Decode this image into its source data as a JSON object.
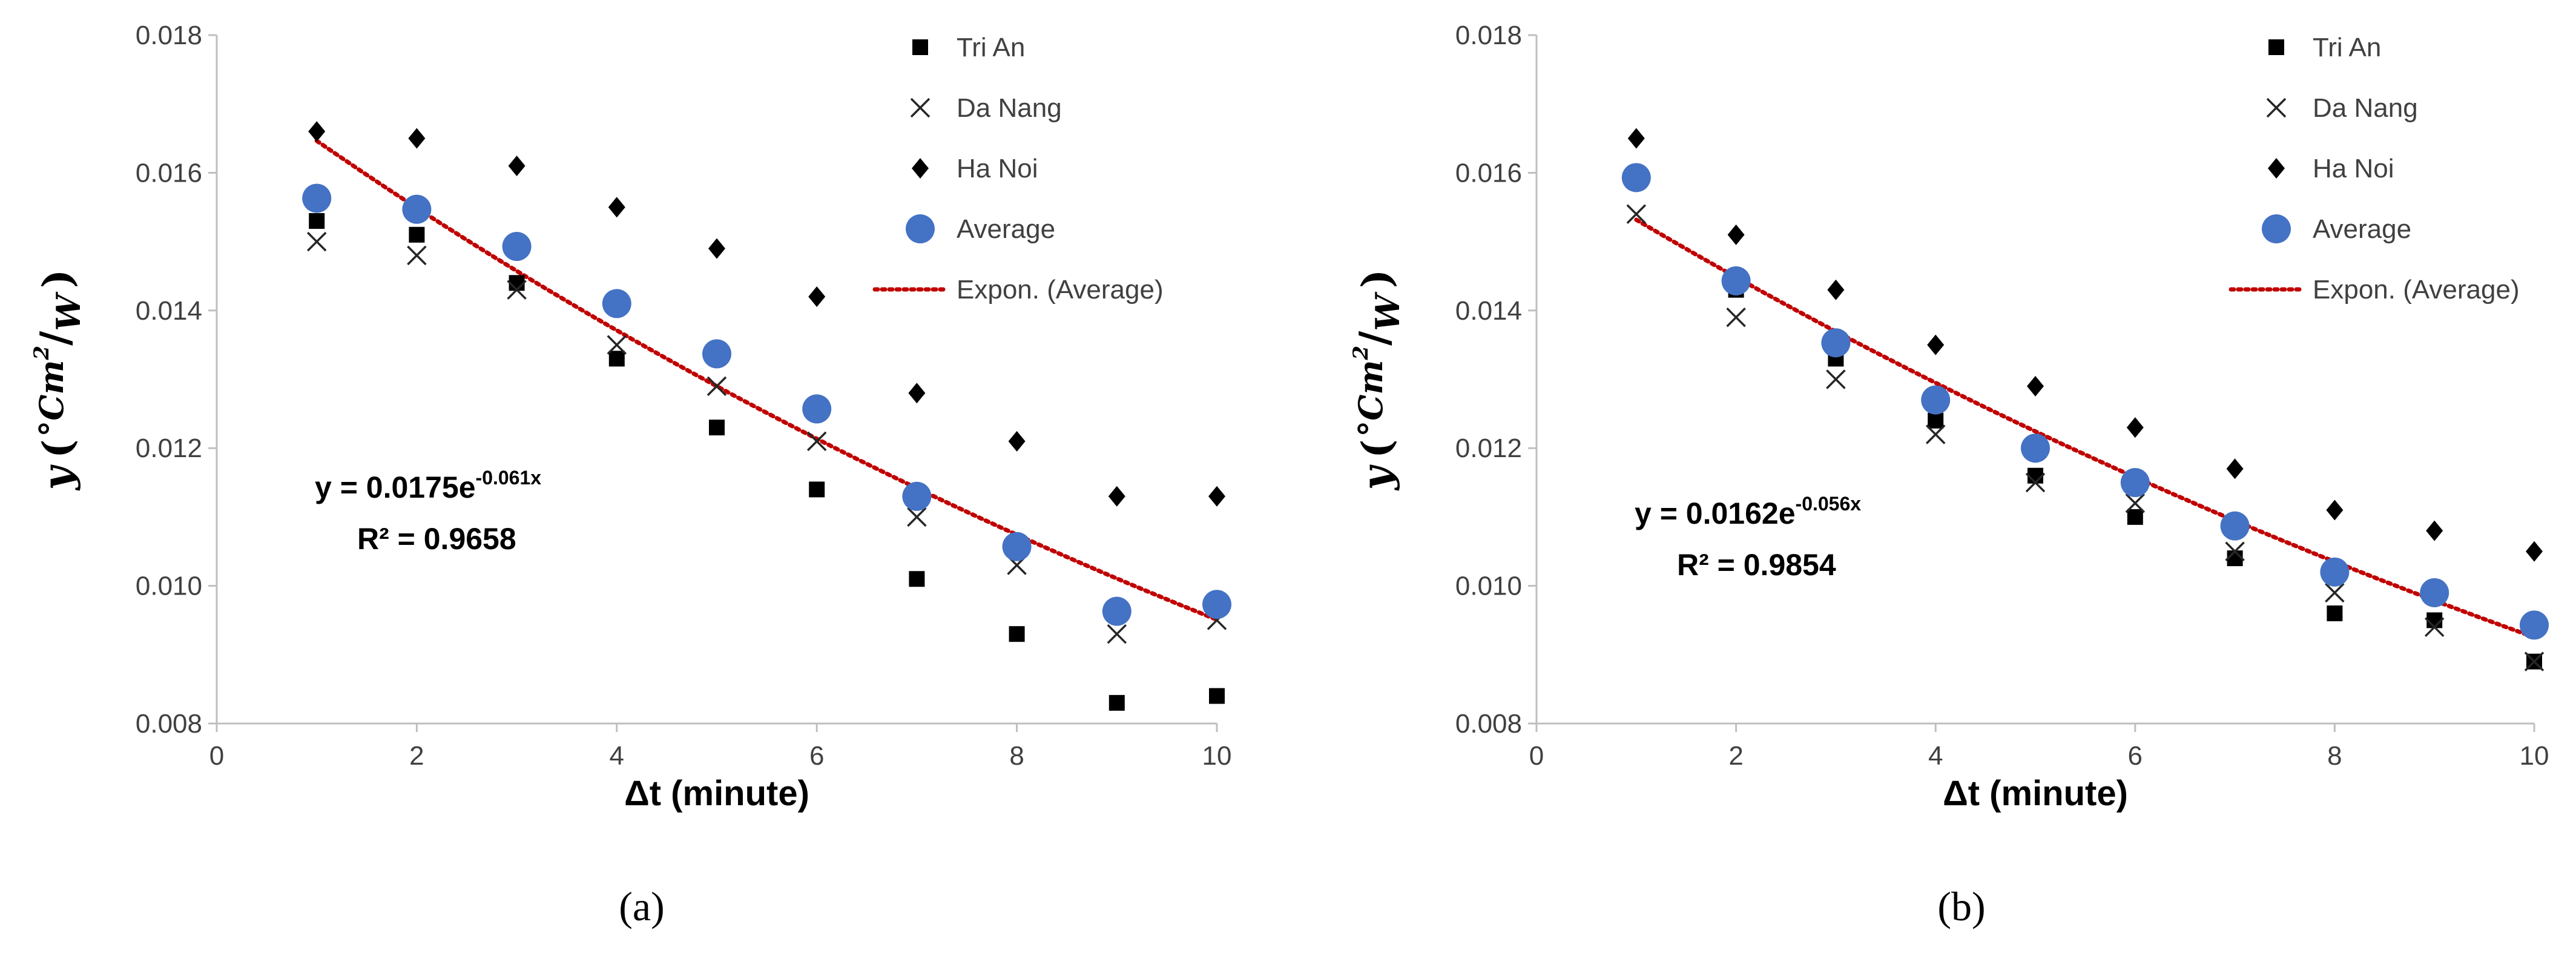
{
  "colors": {
    "tri_an": "#000000",
    "da_nang": "#262626",
    "ha_noi": "#000000",
    "average": "#4472C4",
    "trendline": "#C00000",
    "axis": "#BFBFBF",
    "text": "#404040"
  },
  "chart_data": [
    {
      "type": "scatter",
      "panel": "a",
      "panel_label": "(a)",
      "xlabel": "Δt (minute)",
      "ylabel": {
        "prefix": "y",
        "unit_main": "°Cm",
        "unit_exp": "2",
        "unit_den": "W"
      },
      "xlim": [
        0,
        10
      ],
      "ylim": [
        0.008,
        0.018
      ],
      "x_ticks": [
        "0",
        "2",
        "4",
        "6",
        "8",
        "10"
      ],
      "y_ticks": [
        "0.008",
        "0.010",
        "0.012",
        "0.014",
        "0.016",
        "0.018"
      ],
      "x": [
        1,
        2,
        3,
        4,
        5,
        6,
        7,
        8,
        9,
        10
      ],
      "series": [
        {
          "name": "Tri An",
          "marker": "square",
          "values": [
            0.0153,
            0.0151,
            0.0144,
            0.0133,
            0.0123,
            0.0114,
            0.0101,
            0.0093,
            0.0083,
            0.0084
          ]
        },
        {
          "name": "Da Nang",
          "marker": "x",
          "values": [
            0.015,
            0.0148,
            0.0143,
            0.0135,
            0.0129,
            0.0121,
            0.011,
            0.0103,
            0.0093,
            0.0095
          ]
        },
        {
          "name": "Ha Noi",
          "marker": "diamond",
          "values": [
            0.0166,
            0.0165,
            0.0161,
            0.0155,
            0.0149,
            0.0142,
            0.0128,
            0.0121,
            0.0113,
            0.0113
          ]
        },
        {
          "name": "Average",
          "marker": "circle",
          "values": [
            0.01563,
            0.01547,
            0.01493,
            0.0141,
            0.01337,
            0.01257,
            0.0113,
            0.01057,
            0.00963,
            0.00973
          ]
        }
      ],
      "trendline": {
        "name": "Expon. (Average)",
        "a": 0.0175,
        "b": -0.061
      },
      "equation": {
        "prefix": "y = 0.0175e",
        "exponent": "-0.061x",
        "r2": "R² = 0.9658"
      }
    },
    {
      "type": "scatter",
      "panel": "b",
      "panel_label": "(b)",
      "xlabel": "Δt (minute)",
      "ylabel": {
        "prefix": "y",
        "unit_main": "°Cm",
        "unit_exp": "2",
        "unit_den": "W"
      },
      "xlim": [
        0,
        10
      ],
      "ylim": [
        0.008,
        0.018
      ],
      "x_ticks": [
        "0",
        "2",
        "4",
        "6",
        "8",
        "10"
      ],
      "y_ticks": [
        "0.008",
        "0.010",
        "0.012",
        "0.014",
        "0.016",
        "0.018"
      ],
      "x": [
        1,
        2,
        3,
        4,
        5,
        6,
        7,
        8,
        9,
        10
      ],
      "series": [
        {
          "name": "Tri An",
          "marker": "square",
          "values": [
            0.0159,
            0.0143,
            0.0133,
            0.0124,
            0.0116,
            0.011,
            0.0104,
            0.0096,
            0.0095,
            0.0089
          ]
        },
        {
          "name": "Da Nang",
          "marker": "x",
          "values": [
            0.0154,
            0.0139,
            0.013,
            0.0122,
            0.0115,
            0.0112,
            0.0105,
            0.0099,
            0.0094,
            0.0089
          ]
        },
        {
          "name": "Ha Noi",
          "marker": "diamond",
          "values": [
            0.0165,
            0.0151,
            0.0143,
            0.0135,
            0.0129,
            0.0123,
            0.0117,
            0.0111,
            0.0108,
            0.0105
          ]
        },
        {
          "name": "Average",
          "marker": "circle",
          "values": [
            0.01593,
            0.01443,
            0.01353,
            0.0127,
            0.012,
            0.0115,
            0.01087,
            0.0102,
            0.0099,
            0.00943
          ]
        }
      ],
      "trendline": {
        "name": "Expon. (Average)",
        "a": 0.0162,
        "b": -0.056
      },
      "equation": {
        "prefix": "y = 0.0162e",
        "exponent": "-0.056x",
        "r2": "R² = 0.9854"
      }
    }
  ]
}
